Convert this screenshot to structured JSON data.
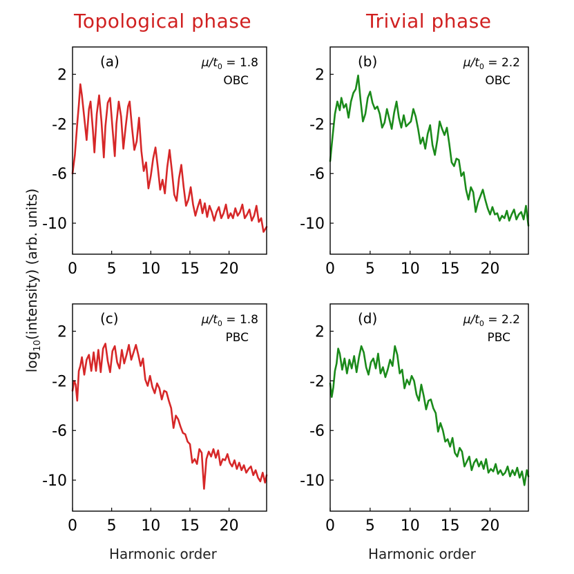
{
  "column_titles": {
    "left": "Topological phase",
    "right": "Trivial phase"
  },
  "ylabel": {
    "pre": "log",
    "sub": "10",
    "post": "(intensity) (arb. units)"
  },
  "xlabel": "Harmonic order",
  "colors": {
    "title": "#d02020",
    "topological": "#d62728",
    "trivial": "#1a8a1a"
  },
  "chart_data": [
    {
      "type": "line",
      "panel": "(a)",
      "param": "= 1.8",
      "bc": "OBC",
      "color": "#d62728",
      "xlim": [
        0,
        24.8
      ],
      "ylim": [
        -12.5,
        4.2
      ],
      "xticks": [
        "0",
        "5",
        "10",
        "15",
        "20"
      ],
      "yticks": [
        "2",
        "-2",
        "-6",
        "-10"
      ],
      "x": [
        0,
        0.3,
        0.6,
        0.8,
        1.0,
        1.2,
        1.5,
        1.8,
        2.1,
        2.3,
        2.6,
        2.8,
        3.1,
        3.4,
        3.7,
        4.0,
        4.2,
        4.5,
        4.8,
        5.1,
        5.4,
        5.6,
        5.9,
        6.2,
        6.5,
        6.8,
        7.1,
        7.3,
        7.6,
        7.9,
        8.2,
        8.5,
        8.8,
        9.1,
        9.4,
        9.7,
        10.0,
        10.3,
        10.6,
        10.9,
        11.2,
        11.5,
        11.8,
        12.1,
        12.4,
        12.7,
        13.0,
        13.3,
        13.6,
        13.9,
        14.2,
        14.5,
        14.8,
        15.1,
        15.4,
        15.7,
        16.0,
        16.3,
        16.6,
        16.9,
        17.2,
        17.5,
        17.8,
        18.1,
        18.4,
        18.7,
        19.0,
        19.3,
        19.6,
        19.9,
        20.2,
        20.5,
        20.8,
        21.1,
        21.4,
        21.7,
        22.0,
        22.3,
        22.6,
        22.9,
        23.2,
        23.5,
        23.8,
        24.1,
        24.4,
        24.8
      ],
      "values": [
        -6,
        -4.5,
        -2,
        -0.5,
        1.2,
        0.3,
        -1.5,
        -3.3,
        -0.8,
        -0.2,
        -2.5,
        -4.3,
        -1.2,
        0.3,
        -1.8,
        -4.7,
        -2.2,
        -0.3,
        0.1,
        -2.3,
        -4.6,
        -2,
        -0.2,
        -1.4,
        -4,
        -2.2,
        -0.6,
        -0.2,
        -2.3,
        -4.1,
        -3.4,
        -1.5,
        -4.2,
        -5.8,
        -5.1,
        -7.2,
        -6.2,
        -4.8,
        -3.9,
        -5.5,
        -7.3,
        -6.5,
        -7.6,
        -5.5,
        -4.1,
        -5.8,
        -7.7,
        -8.2,
        -6.4,
        -5.3,
        -7.1,
        -8.6,
        -8.1,
        -7.1,
        -8.5,
        -9.4,
        -8.7,
        -8.1,
        -9.2,
        -8.4,
        -9.5,
        -8.6,
        -9.1,
        -9.8,
        -9.1,
        -8.7,
        -9.6,
        -9.2,
        -8.5,
        -9.6,
        -9.2,
        -9.6,
        -8.8,
        -9.4,
        -9.1,
        -8.5,
        -9.6,
        -9.3,
        -8.9,
        -9.8,
        -9.4,
        -8.6,
        -9.9,
        -9.6,
        -10.7,
        -10.3
      ]
    },
    {
      "type": "line",
      "panel": "(b)",
      "param": "= 2.2",
      "bc": "OBC",
      "color": "#1a8a1a",
      "xlim": [
        0,
        24.8
      ],
      "ylim": [
        -12.5,
        4.2
      ],
      "xticks": [
        "0",
        "5",
        "10",
        "15",
        "20"
      ],
      "yticks": [
        "2",
        "-2",
        "-6",
        "-10"
      ],
      "x": [
        0,
        0.3,
        0.6,
        0.9,
        1.2,
        1.4,
        1.7,
        2.0,
        2.3,
        2.6,
        2.9,
        3.2,
        3.5,
        3.8,
        4.1,
        4.4,
        4.7,
        5.0,
        5.3,
        5.6,
        5.9,
        6.2,
        6.5,
        6.8,
        7.1,
        7.4,
        7.7,
        8.0,
        8.3,
        8.6,
        8.9,
        9.2,
        9.5,
        9.8,
        10.1,
        10.4,
        10.7,
        11.0,
        11.3,
        11.6,
        11.9,
        12.2,
        12.5,
        12.8,
        13.1,
        13.4,
        13.7,
        14.0,
        14.3,
        14.6,
        14.9,
        15.2,
        15.5,
        15.8,
        16.1,
        16.4,
        16.7,
        17.0,
        17.3,
        17.6,
        17.9,
        18.2,
        18.5,
        18.8,
        19.1,
        19.4,
        19.7,
        20.0,
        20.3,
        20.6,
        20.9,
        21.2,
        21.5,
        21.8,
        22.1,
        22.4,
        22.7,
        23.0,
        23.3,
        23.6,
        23.9,
        24.2,
        24.5,
        24.8
      ],
      "values": [
        -5,
        -3,
        -1.2,
        -0.2,
        -0.9,
        0.1,
        -0.7,
        -0.4,
        -1.5,
        -0.2,
        0.5,
        0.8,
        1.9,
        -0.1,
        -1.8,
        -1.2,
        0.1,
        0.6,
        -0.3,
        -0.8,
        -0.6,
        -1.2,
        -2.3,
        -1.9,
        -0.8,
        -1.6,
        -2.4,
        -1.1,
        -0.2,
        -1.5,
        -2.3,
        -1.3,
        -2.2,
        -2,
        -1.8,
        -0.8,
        -1.4,
        -2.4,
        -3.6,
        -3.1,
        -4,
        -2.8,
        -2.1,
        -3.7,
        -4.5,
        -3.3,
        -1.8,
        -2.4,
        -2.9,
        -2.3,
        -3.6,
        -5.1,
        -5.4,
        -4.8,
        -4.9,
        -6.2,
        -5.9,
        -7.3,
        -8.1,
        -7.1,
        -7.5,
        -9.1,
        -8.3,
        -7.8,
        -7.3,
        -8.1,
        -8.8,
        -9.3,
        -8.7,
        -9.3,
        -9.2,
        -9.8,
        -9.4,
        -9.6,
        -9,
        -9.8,
        -9.3,
        -8.9,
        -9.7,
        -9.3,
        -9.1,
        -9.7,
        -8.6,
        -10.2
      ]
    },
    {
      "type": "line",
      "panel": "(c)",
      "param": "= 1.8",
      "bc": "PBC",
      "color": "#d62728",
      "xlim": [
        0,
        24.8
      ],
      "ylim": [
        -12.5,
        4.2
      ],
      "xticks": [
        "0",
        "5",
        "10",
        "15",
        "20"
      ],
      "yticks": [
        "2",
        "-2",
        "-6",
        "-10"
      ],
      "x": [
        0,
        0.2,
        0.4,
        0.6,
        0.8,
        1.0,
        1.2,
        1.5,
        1.8,
        2.1,
        2.4,
        2.7,
        3.0,
        3.3,
        3.6,
        3.9,
        4.2,
        4.5,
        4.8,
        5.1,
        5.4,
        5.7,
        6.0,
        6.3,
        6.6,
        6.9,
        7.2,
        7.5,
        7.8,
        8.1,
        8.4,
        8.7,
        9.0,
        9.3,
        9.6,
        9.9,
        10.2,
        10.5,
        10.8,
        11.1,
        11.4,
        11.7,
        12.0,
        12.3,
        12.6,
        12.9,
        13.2,
        13.5,
        13.8,
        14.1,
        14.4,
        14.7,
        15.0,
        15.3,
        15.6,
        15.9,
        16.2,
        16.5,
        16.8,
        17.1,
        17.4,
        17.7,
        18.0,
        18.3,
        18.6,
        18.9,
        19.2,
        19.5,
        19.8,
        20.1,
        20.4,
        20.7,
        21.0,
        21.3,
        21.6,
        21.9,
        22.2,
        22.5,
        22.8,
        23.1,
        23.4,
        23.7,
        24.0,
        24.3,
        24.6,
        24.8
      ],
      "values": [
        -2.8,
        -2,
        -2.3,
        -3.6,
        -1.2,
        -0.8,
        -0.1,
        -1.5,
        -0.3,
        0.1,
        -1.2,
        0.3,
        -1.2,
        0.5,
        -1.3,
        0.6,
        1,
        -0.4,
        -1.3,
        0.4,
        0.8,
        -0.5,
        -1,
        0.5,
        -0.6,
        0.1,
        0.9,
        -0.3,
        0.3,
        0.9,
        0.1,
        -0.8,
        -0.2,
        -1.9,
        -2.4,
        -1.6,
        -2.5,
        -3,
        -2.2,
        -2.6,
        -3.5,
        -2.8,
        -2.9,
        -3.6,
        -4.2,
        -5.8,
        -4.8,
        -5.1,
        -5.7,
        -6.2,
        -6.3,
        -6.9,
        -7.1,
        -8.6,
        -8.3,
        -8.7,
        -7.5,
        -7.8,
        -10.7,
        -8.3,
        -7.7,
        -8.1,
        -7.5,
        -8.2,
        -7.6,
        -8.8,
        -8.3,
        -8.4,
        -7.9,
        -8.6,
        -8.9,
        -8.4,
        -9.1,
        -8.6,
        -9.2,
        -8.8,
        -9.4,
        -9.1,
        -8.9,
        -9.6,
        -9.2,
        -9.8,
        -10.1,
        -9.4,
        -10.2,
        -9.6
      ]
    },
    {
      "type": "line",
      "panel": "(d)",
      "param": "= 2.2",
      "bc": "PBC",
      "color": "#1a8a1a",
      "xlim": [
        0,
        24.8
      ],
      "ylim": [
        -12.5,
        4.2
      ],
      "xticks": [
        "0",
        "5",
        "10",
        "15",
        "20"
      ],
      "yticks": [
        "2",
        "-2",
        "-6",
        "-10"
      ],
      "x": [
        0,
        0.2,
        0.4,
        0.6,
        0.8,
        1.0,
        1.2,
        1.5,
        1.8,
        2.1,
        2.4,
        2.7,
        3.0,
        3.3,
        3.6,
        3.9,
        4.2,
        4.5,
        4.8,
        5.1,
        5.4,
        5.7,
        6.0,
        6.3,
        6.6,
        6.9,
        7.2,
        7.5,
        7.8,
        8.1,
        8.4,
        8.7,
        9.0,
        9.3,
        9.6,
        9.9,
        10.2,
        10.5,
        10.8,
        11.1,
        11.4,
        11.7,
        12.0,
        12.3,
        12.6,
        12.9,
        13.2,
        13.5,
        13.8,
        14.1,
        14.4,
        14.7,
        15.0,
        15.3,
        15.6,
        15.9,
        16.2,
        16.5,
        16.8,
        17.1,
        17.4,
        17.7,
        18.0,
        18.3,
        18.6,
        18.9,
        19.2,
        19.5,
        19.8,
        20.1,
        20.4,
        20.7,
        21.0,
        21.3,
        21.6,
        21.9,
        22.2,
        22.5,
        22.8,
        23.1,
        23.4,
        23.7,
        24.0,
        24.3,
        24.6,
        24.8
      ],
      "values": [
        -2.2,
        -3.3,
        -2.5,
        -1.2,
        -0.6,
        0.6,
        0.2,
        -1.1,
        -0.2,
        -1.4,
        -0.3,
        -1,
        0,
        -1.3,
        -0.1,
        0.8,
        0.3,
        -0.9,
        -1.5,
        -0.5,
        -0.2,
        -1,
        0.2,
        -1.4,
        -0.9,
        -1.7,
        -1.1,
        -0.3,
        -0.8,
        0.8,
        0.1,
        -1.4,
        -1.1,
        -2.6,
        -1.9,
        -2.3,
        -1.6,
        -2,
        -3.1,
        -3.6,
        -2.3,
        -3.2,
        -4.3,
        -3.6,
        -3.5,
        -4.2,
        -4.6,
        -6.1,
        -5.4,
        -6,
        -6.9,
        -6.7,
        -7.3,
        -6.6,
        -7.8,
        -8.1,
        -7.4,
        -7.7,
        -8.9,
        -8.5,
        -8.1,
        -9.2,
        -8.6,
        -8.3,
        -8.9,
        -8.5,
        -9.1,
        -8.3,
        -9.4,
        -9.1,
        -9.3,
        -8.7,
        -9.5,
        -9.2,
        -9.6,
        -9.4,
        -8.9,
        -9.7,
        -9.2,
        -9.6,
        -9,
        -9.8,
        -9.3,
        -10.4,
        -9.2,
        -9.7
      ]
    }
  ]
}
